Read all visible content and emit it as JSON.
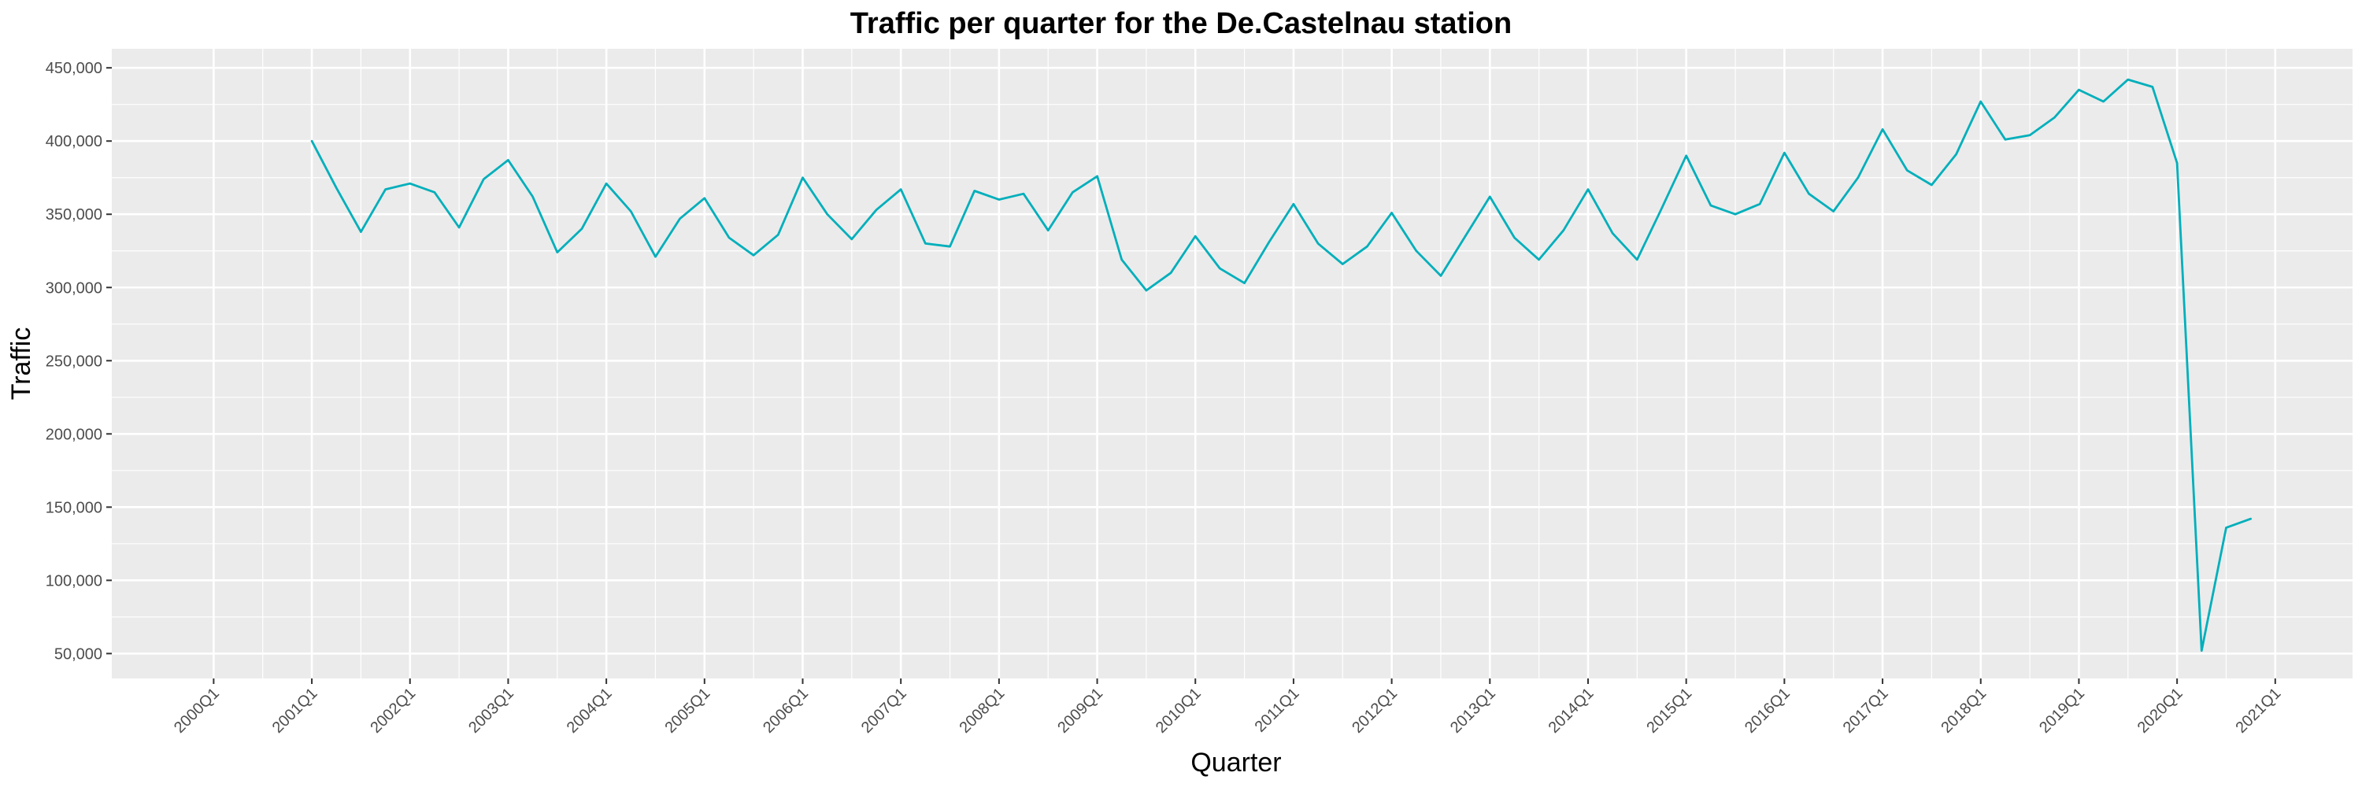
{
  "chart_data": {
    "type": "line",
    "title": "Traffic per quarter for the De.Castelnau station",
    "xlabel": "Quarter",
    "ylabel": "Traffic",
    "x_ticks": [
      "2000Q1",
      "2001Q1",
      "2002Q1",
      "2003Q1",
      "2004Q1",
      "2005Q1",
      "2006Q1",
      "2007Q1",
      "2008Q1",
      "2009Q1",
      "2010Q1",
      "2011Q1",
      "2012Q1",
      "2013Q1",
      "2014Q1",
      "2015Q1",
      "2016Q1",
      "2017Q1",
      "2018Q1",
      "2019Q1",
      "2020Q1",
      "2021Q1"
    ],
    "y_ticks": [
      "50,000",
      "100,000",
      "150,000",
      "200,000",
      "250,000",
      "300,000",
      "350,000",
      "400,000",
      "450,000"
    ],
    "y_tick_values": [
      50000,
      100000,
      150000,
      200000,
      250000,
      300000,
      350000,
      400000,
      450000
    ],
    "ylim": [
      33000,
      463000
    ],
    "xlim": [
      "2000Q1",
      "2021Q4"
    ],
    "grid": true,
    "colors": {
      "line": "#00AFBB",
      "panel": "#EBEBEB",
      "grid": "#FFFFFF"
    },
    "series": [
      {
        "x": [
          "2001Q1",
          "2001Q2",
          "2001Q3",
          "2001Q4",
          "2002Q1",
          "2002Q2",
          "2002Q3",
          "2002Q4",
          "2003Q1",
          "2003Q2",
          "2003Q3",
          "2003Q4",
          "2004Q1",
          "2004Q2",
          "2004Q3",
          "2004Q4",
          "2005Q1",
          "2005Q2",
          "2005Q3",
          "2005Q4",
          "2006Q1",
          "2006Q2",
          "2006Q3",
          "2006Q4",
          "2007Q1",
          "2007Q2",
          "2007Q3",
          "2007Q4",
          "2008Q1",
          "2008Q2",
          "2008Q3",
          "2008Q4",
          "2009Q1",
          "2009Q2",
          "2009Q3",
          "2009Q4",
          "2010Q1",
          "2010Q2",
          "2010Q3",
          "2010Q4",
          "2011Q1",
          "2011Q2",
          "2011Q3",
          "2011Q4",
          "2012Q1",
          "2012Q2",
          "2012Q3",
          "2012Q4",
          "2013Q1",
          "2013Q2",
          "2013Q3",
          "2013Q4",
          "2014Q1",
          "2014Q2",
          "2014Q3",
          "2014Q4",
          "2015Q1",
          "2015Q2",
          "2015Q3",
          "2015Q4",
          "2016Q1",
          "2016Q2",
          "2016Q3",
          "2016Q4",
          "2017Q1",
          "2017Q2",
          "2017Q3",
          "2017Q4",
          "2018Q1",
          "2018Q2",
          "2018Q3",
          "2018Q4",
          "2019Q1",
          "2019Q2",
          "2019Q3",
          "2019Q4",
          "2020Q1",
          "2020Q2",
          "2020Q3",
          "2020Q4"
        ],
        "values": [
          400000,
          368000,
          338000,
          367000,
          371000,
          365000,
          341000,
          374000,
          387000,
          362000,
          324000,
          340000,
          371000,
          352000,
          321000,
          347000,
          361000,
          334000,
          322000,
          336000,
          375000,
          350000,
          333000,
          353000,
          367000,
          330000,
          328000,
          366000,
          360000,
          364000,
          339000,
          365000,
          376000,
          319000,
          298000,
          310000,
          335000,
          313000,
          303000,
          331000,
          357000,
          330000,
          316000,
          328000,
          351000,
          325000,
          308000,
          335000,
          362000,
          334000,
          319000,
          339000,
          367000,
          337000,
          319000,
          354000,
          390000,
          356000,
          350000,
          357000,
          392000,
          364000,
          352000,
          375000,
          408000,
          380000,
          370000,
          391000,
          427000,
          401000,
          404000,
          416000,
          435000,
          427000,
          442000,
          437000,
          385000,
          52000,
          136000,
          142000
        ]
      }
    ]
  }
}
